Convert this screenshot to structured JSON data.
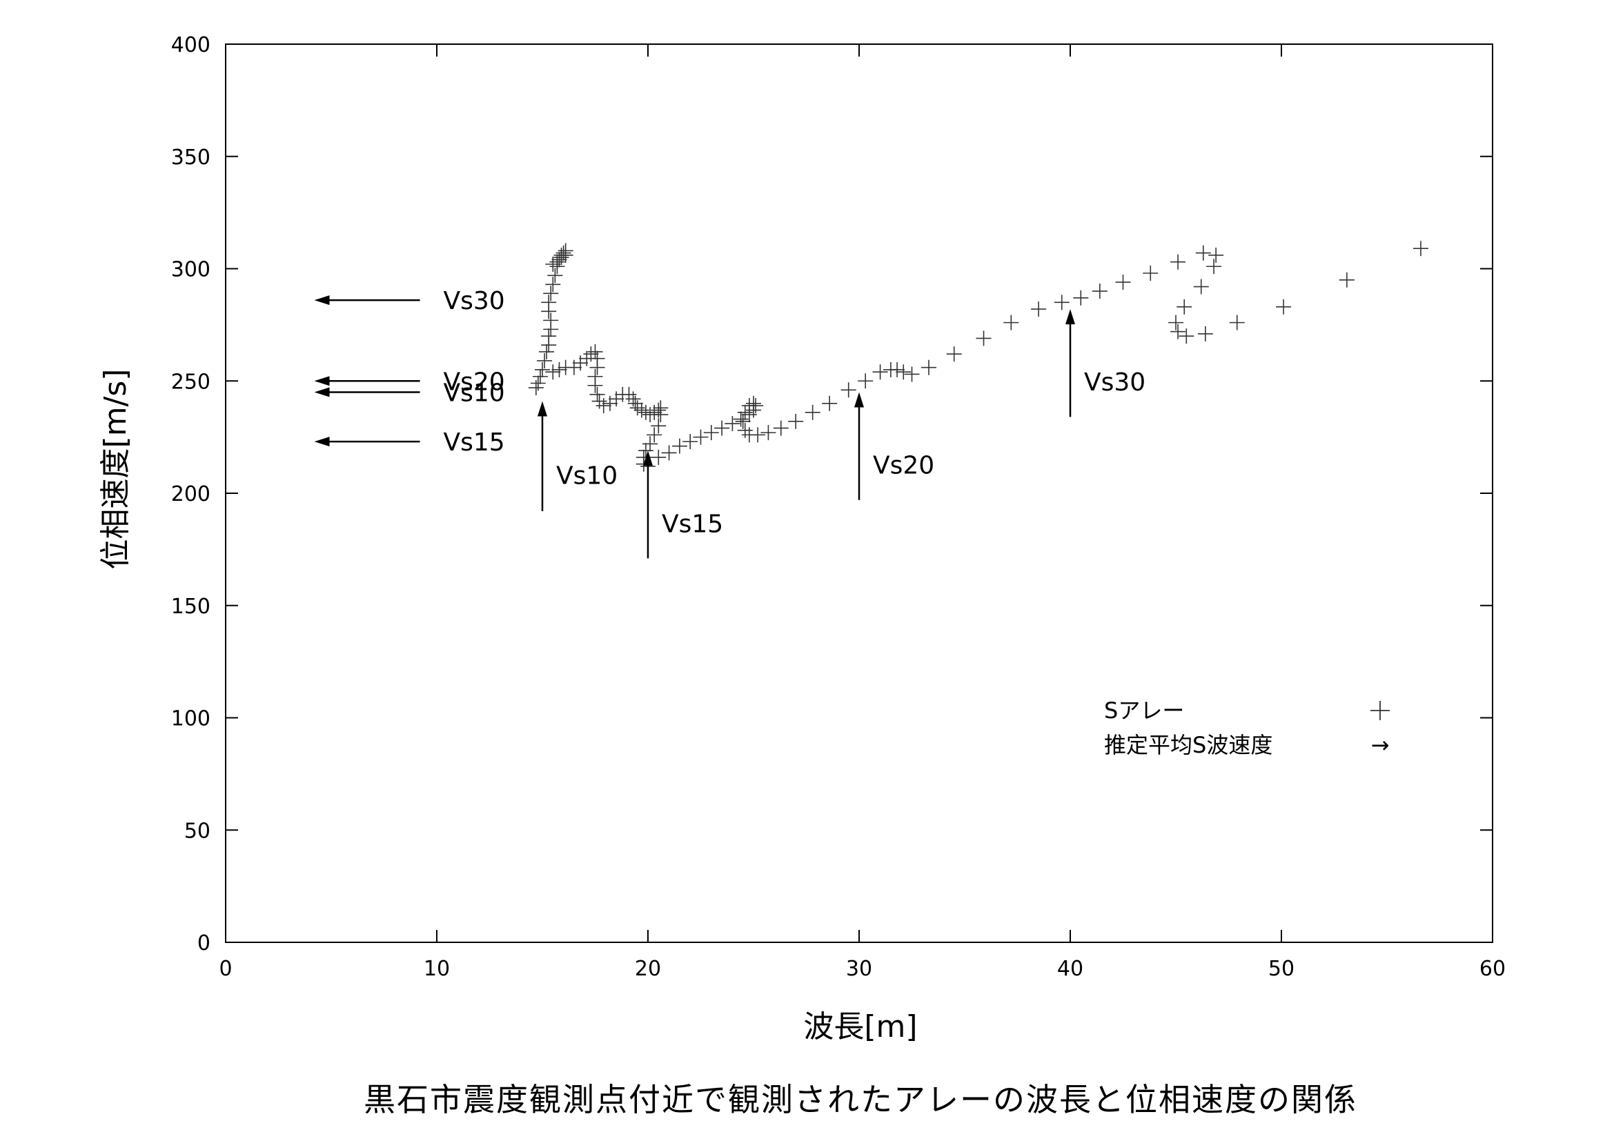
{
  "chart_data": {
    "type": "scatter",
    "title": "",
    "caption": "黒石市震度観測点付近で観測されたアレーの波長と位相速度の関係",
    "xlabel": "波長[m]",
    "ylabel": "位相速度[m/s]",
    "xlim": [
      0,
      60
    ],
    "ylim": [
      0,
      400
    ],
    "xticks": [
      0,
      10,
      20,
      30,
      40,
      50,
      60
    ],
    "yticks": [
      0,
      50,
      100,
      150,
      200,
      250,
      300,
      350,
      400
    ],
    "grid": false,
    "legend_position": "bottom-right",
    "series": [
      {
        "name": "Sアレー",
        "marker": "+",
        "points": [
          [
            14.7,
            247
          ],
          [
            14.8,
            249
          ],
          [
            14.9,
            252
          ],
          [
            15.0,
            255
          ],
          [
            15.1,
            259
          ],
          [
            15.2,
            263
          ],
          [
            15.3,
            266
          ],
          [
            15.3,
            270
          ],
          [
            15.4,
            273
          ],
          [
            15.4,
            277
          ],
          [
            15.3,
            281
          ],
          [
            15.3,
            285
          ],
          [
            15.4,
            289
          ],
          [
            15.5,
            293
          ],
          [
            15.6,
            297
          ],
          [
            15.7,
            301
          ],
          [
            15.8,
            304
          ],
          [
            15.9,
            306
          ],
          [
            16.0,
            307
          ],
          [
            16.1,
            308
          ],
          [
            15.5,
            302
          ],
          [
            15.7,
            303
          ],
          [
            15.9,
            305
          ],
          [
            16.1,
            306
          ],
          [
            15.5,
            254
          ],
          [
            15.8,
            255
          ],
          [
            16.1,
            256
          ],
          [
            16.5,
            256
          ],
          [
            16.8,
            258
          ],
          [
            17.1,
            260
          ],
          [
            17.3,
            262
          ],
          [
            17.5,
            263
          ],
          [
            17.6,
            260
          ],
          [
            17.6,
            256
          ],
          [
            17.5,
            252
          ],
          [
            17.5,
            248
          ],
          [
            17.6,
            244
          ],
          [
            17.7,
            241
          ],
          [
            17.9,
            239
          ],
          [
            18.2,
            240
          ],
          [
            18.5,
            242
          ],
          [
            18.8,
            244
          ],
          [
            19.1,
            244
          ],
          [
            19.3,
            242
          ],
          [
            19.4,
            240
          ],
          [
            19.5,
            238
          ],
          [
            19.7,
            237
          ],
          [
            19.9,
            236
          ],
          [
            20.1,
            235
          ],
          [
            20.3,
            236
          ],
          [
            20.5,
            237
          ],
          [
            20.6,
            238
          ],
          [
            20.6,
            235
          ],
          [
            20.5,
            230
          ],
          [
            20.3,
            226
          ],
          [
            20.1,
            222
          ],
          [
            19.9,
            219
          ],
          [
            19.8,
            216
          ],
          [
            19.8,
            213
          ],
          [
            20.0,
            212
          ],
          [
            20.5,
            216
          ],
          [
            21.0,
            218
          ],
          [
            21.5,
            221
          ],
          [
            22.0,
            223
          ],
          [
            22.5,
            225
          ],
          [
            23.0,
            227
          ],
          [
            23.5,
            229
          ],
          [
            24.0,
            231
          ],
          [
            24.4,
            233
          ],
          [
            24.8,
            235
          ],
          [
            25.0,
            237
          ],
          [
            25.1,
            239
          ],
          [
            25.0,
            240
          ],
          [
            24.8,
            239
          ],
          [
            24.6,
            236
          ],
          [
            24.5,
            232
          ],
          [
            24.6,
            228
          ],
          [
            24.8,
            226
          ],
          [
            25.2,
            226
          ],
          [
            25.7,
            227
          ],
          [
            26.3,
            229
          ],
          [
            27.0,
            232
          ],
          [
            27.8,
            236
          ],
          [
            28.6,
            240
          ],
          [
            29.5,
            246
          ],
          [
            30.3,
            250
          ],
          [
            31.0,
            254
          ],
          [
            31.5,
            255
          ],
          [
            31.8,
            255
          ],
          [
            32.1,
            254
          ],
          [
            32.5,
            253
          ],
          [
            33.3,
            256
          ],
          [
            34.5,
            262
          ],
          [
            35.9,
            269
          ],
          [
            37.2,
            276
          ],
          [
            38.5,
            282
          ],
          [
            39.6,
            285
          ],
          [
            40.5,
            287
          ],
          [
            41.4,
            290
          ],
          [
            42.5,
            294
          ],
          [
            43.8,
            298
          ],
          [
            45.1,
            303
          ],
          [
            46.3,
            307
          ],
          [
            46.9,
            306
          ],
          [
            46.8,
            301
          ],
          [
            46.2,
            292
          ],
          [
            45.4,
            283
          ],
          [
            45.0,
            276
          ],
          [
            45.1,
            272
          ],
          [
            45.5,
            270
          ],
          [
            46.4,
            271
          ],
          [
            47.9,
            276
          ],
          [
            50.1,
            283
          ],
          [
            53.1,
            295
          ],
          [
            56.6,
            309
          ]
        ]
      }
    ],
    "annotations": [
      {
        "label": "Vs30",
        "direction": "left",
        "y": 286,
        "x_from": 9.2,
        "x_to": 4.2
      },
      {
        "label": "Vs20",
        "direction": "left",
        "y": 250,
        "x_from": 9.2,
        "x_to": 4.2
      },
      {
        "label": "Vs10",
        "direction": "left",
        "y": 245,
        "x_from": 9.2,
        "x_to": 4.2
      },
      {
        "label": "Vs15",
        "direction": "left",
        "y": 223,
        "x_from": 9.2,
        "x_to": 4.2
      },
      {
        "label": "Vs10",
        "direction": "up",
        "x": 15,
        "y_from": 192,
        "y_to": 241
      },
      {
        "label": "Vs15",
        "direction": "up",
        "x": 20,
        "y_from": 171,
        "y_to": 219
      },
      {
        "label": "Vs20",
        "direction": "up",
        "x": 30,
        "y_from": 197,
        "y_to": 245
      },
      {
        "label": "Vs30",
        "direction": "up",
        "x": 40,
        "y_from": 234,
        "y_to": 282
      }
    ],
    "legend": [
      {
        "label": "Sアレー",
        "symbol": "+"
      },
      {
        "label": "推定平均S波速度",
        "symbol": "→"
      }
    ]
  }
}
